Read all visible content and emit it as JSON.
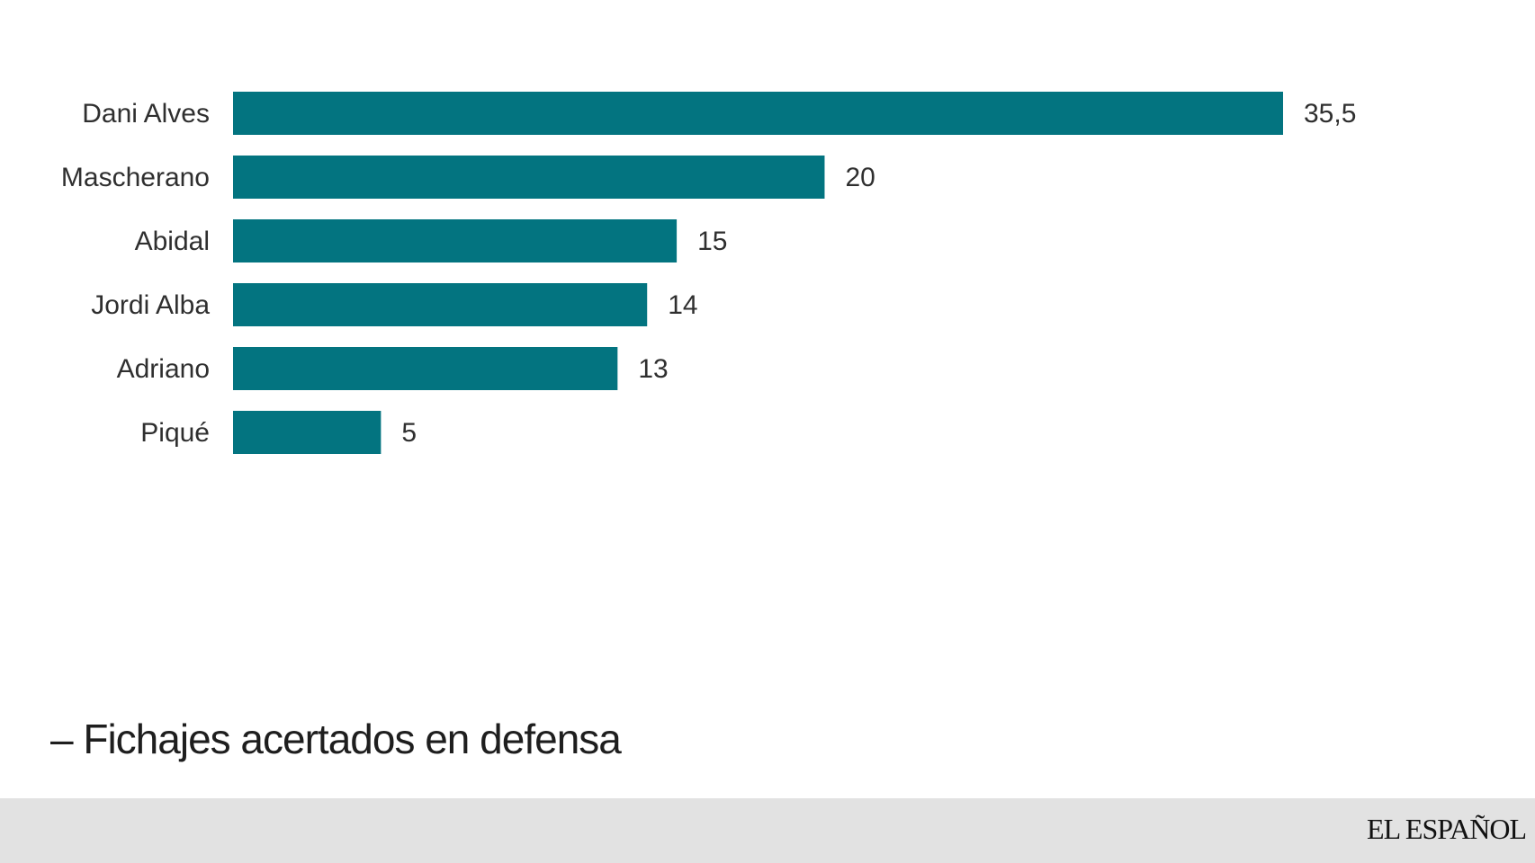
{
  "chart_data": {
    "type": "bar",
    "orientation": "horizontal",
    "categories": [
      "Dani Alves",
      "Mascherano",
      "Abidal",
      "Jordi Alba",
      "Adriano",
      "Piqué"
    ],
    "values": [
      35.5,
      20,
      15,
      14,
      13,
      5
    ],
    "value_labels": [
      "35,5",
      "20",
      "15",
      "14",
      "13",
      "5"
    ],
    "xlim": [
      0,
      35.5
    ],
    "grid": false,
    "bar_color": "#037480"
  },
  "caption": "– Fichajes acertados en defensa",
  "brand": "EL ESPAÑOL"
}
